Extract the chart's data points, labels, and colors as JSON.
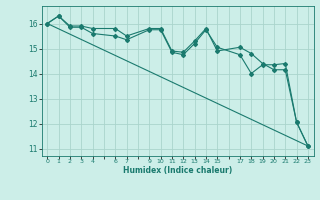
{
  "xlabel": "Humidex (Indice chaleur)",
  "background_color": "#cceee8",
  "grid_color": "#aad4cc",
  "line_color": "#1a7a6e",
  "xlim": [
    -0.5,
    23.5
  ],
  "ylim": [
    10.7,
    16.7
  ],
  "yticks": [
    11,
    12,
    13,
    14,
    15,
    16
  ],
  "xtick_labels": [
    "0",
    "1",
    "2",
    "3",
    "4",
    "",
    "6",
    "7",
    "",
    "9",
    "10",
    "11",
    "12",
    "13",
    "14",
    "15",
    "",
    "17",
    "18",
    "19",
    "20",
    "21",
    "22",
    "23"
  ],
  "xtick_positions": [
    0,
    1,
    2,
    3,
    4,
    5,
    6,
    7,
    8,
    9,
    10,
    11,
    12,
    13,
    14,
    15,
    16,
    17,
    18,
    19,
    20,
    21,
    22,
    23
  ],
  "series1": [
    [
      0,
      16.0
    ],
    [
      1,
      16.3
    ],
    [
      2,
      15.9
    ],
    [
      3,
      15.9
    ],
    [
      4,
      15.8
    ],
    [
      6,
      15.8
    ],
    [
      7,
      15.5
    ],
    [
      9,
      15.8
    ],
    [
      10,
      15.8
    ],
    [
      11,
      14.9
    ],
    [
      12,
      14.85
    ],
    [
      13,
      15.3
    ],
    [
      14,
      15.8
    ],
    [
      15,
      14.9
    ],
    [
      17,
      15.05
    ],
    [
      18,
      14.8
    ],
    [
      19,
      14.4
    ],
    [
      20,
      14.15
    ],
    [
      21,
      14.15
    ],
    [
      22,
      12.05
    ],
    [
      23,
      11.1
    ]
  ],
  "series2": [
    [
      0,
      16.0
    ],
    [
      1,
      16.3
    ],
    [
      2,
      15.85
    ],
    [
      3,
      15.85
    ],
    [
      4,
      15.6
    ],
    [
      6,
      15.5
    ],
    [
      7,
      15.35
    ],
    [
      9,
      15.75
    ],
    [
      10,
      15.75
    ],
    [
      11,
      14.85
    ],
    [
      12,
      14.75
    ],
    [
      13,
      15.2
    ],
    [
      14,
      15.75
    ],
    [
      15,
      15.05
    ],
    [
      17,
      14.75
    ],
    [
      18,
      14.0
    ],
    [
      19,
      14.35
    ],
    [
      20,
      14.35
    ],
    [
      21,
      14.4
    ],
    [
      22,
      12.05
    ],
    [
      23,
      11.1
    ]
  ],
  "series3": [
    [
      0,
      16.0
    ],
    [
      23,
      11.1
    ]
  ]
}
